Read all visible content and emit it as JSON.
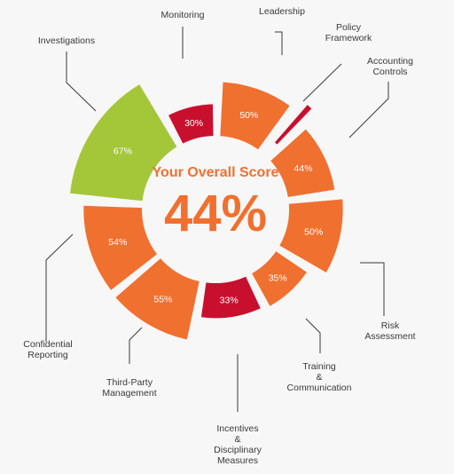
{
  "chart_data": {
    "type": "pie",
    "center_title": "Your Overall Score",
    "center_value": "44%",
    "colors": {
      "high": "#a4c639",
      "medium": "#f07030",
      "low": "#c8102e"
    },
    "slices": [
      {
        "label": [
          "Leadership"
        ],
        "value": 50,
        "display": "50%",
        "level": "medium"
      },
      {
        "label": [
          "Policy",
          "Framework"
        ],
        "value": null,
        "display": "",
        "level": "low"
      },
      {
        "label": [
          "Accounting",
          "Controls"
        ],
        "value": 44,
        "display": "44%",
        "level": "medium"
      },
      {
        "label": [
          "Risk",
          "Assessment"
        ],
        "value": 50,
        "display": "50%",
        "level": "medium"
      },
      {
        "label": [
          "Training",
          "&",
          "Communication"
        ],
        "value": 35,
        "display": "35%",
        "level": "medium"
      },
      {
        "label": [
          "Incentives",
          "&",
          "Disciplinary",
          "Measures"
        ],
        "value": 33,
        "display": "33%",
        "level": "low"
      },
      {
        "label": [
          "Third-Party",
          "Management"
        ],
        "value": 55,
        "display": "55%",
        "level": "medium"
      },
      {
        "label": [
          "Confidential",
          "Reporting"
        ],
        "value": 54,
        "display": "54%",
        "level": "medium"
      },
      {
        "label": [
          "Investigations"
        ],
        "value": 67,
        "display": "67%",
        "level": "high"
      },
      {
        "label": [
          "Monitoring"
        ],
        "value": 30,
        "display": "30%",
        "level": "low"
      }
    ]
  }
}
